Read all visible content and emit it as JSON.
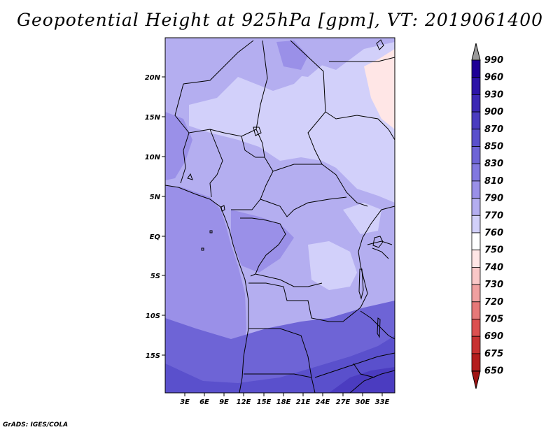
{
  "title": "Geopotential Height at 925hPa [gpm], VT: 2019061400",
  "credit": "GrADS: IGES/COLA",
  "map": {
    "lat_labels": [
      "20N",
      "15N",
      "10N",
      "5N",
      "EQ",
      "5S",
      "10S",
      "15S"
    ],
    "lon_labels": [
      "3E",
      "6E",
      "9E",
      "12E",
      "15E",
      "18E",
      "21E",
      "24E",
      "27E",
      "30E",
      "33E"
    ]
  },
  "colorbar": {
    "levels": [
      "990",
      "960",
      "930",
      "900",
      "870",
      "850",
      "830",
      "810",
      "790",
      "770",
      "760",
      "750",
      "740",
      "730",
      "720",
      "705",
      "690",
      "675",
      "650"
    ],
    "colors": [
      "#9a9a9a",
      "#1e0096",
      "#2d14a8",
      "#3c28b4",
      "#4b3cc0",
      "#5a50cc",
      "#6e64d6",
      "#8278e0",
      "#9a90e8",
      "#b4aef0",
      "#d2d0fa",
      "#ffffff",
      "#ffe6e6",
      "#fac8c8",
      "#f0a0a0",
      "#e67878",
      "#dc5050",
      "#c83232",
      "#b41e1e",
      "#a01414"
    ]
  },
  "palette": {
    "dark": "#4b3cc0",
    "deep": "#5a50cc",
    "mid": "#8278e0",
    "mid2": "#9a90e8",
    "light": "#b4aef0",
    "pale": "#d2d0fa",
    "pink": "#ffe6e6"
  }
}
